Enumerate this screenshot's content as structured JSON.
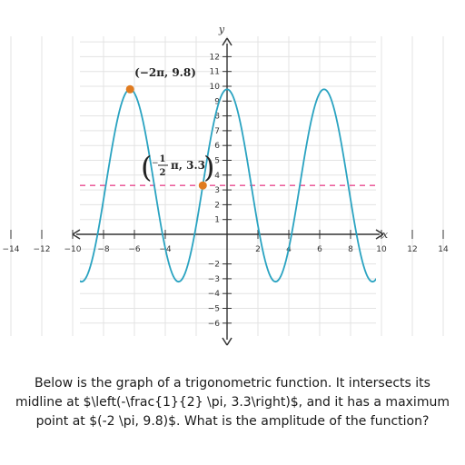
{
  "chart_data": {
    "type": "line",
    "xlabel": "x",
    "ylabel": "y",
    "xlim": [
      -16,
      16
    ],
    "ylim": [
      -7,
      13.2
    ],
    "x_ticks": [
      -14,
      -12,
      -10,
      -8,
      -6,
      -4,
      2,
      4,
      6,
      8,
      10,
      12,
      14
    ],
    "y_ticks": [
      -6,
      -5,
      -4,
      -3,
      -2,
      1,
      2,
      3,
      4,
      5,
      6,
      7,
      8,
      9,
      10,
      11,
      12
    ],
    "grid": true,
    "function": {
      "kind": "sine",
      "midline": 3.3,
      "amplitude": 6.5,
      "period": 6.2832,
      "midline_crossing_x": -1.5708,
      "curve_color": "#2aa3c1"
    },
    "midline_color": "#e84a8f",
    "points": [
      {
        "x": -6.2832,
        "y": 9.8,
        "label": "(−2π, 9.8)",
        "color": "#e07b1f"
      },
      {
        "x": -1.5708,
        "y": 3.3,
        "label_parts": [
          "1",
          "2",
          "π, 3.3"
        ],
        "color": "#e07b1f"
      }
    ]
  },
  "question": {
    "text": "Below is the graph of a trigonometric function. It intersects its midline at $\\left(-\\frac{1}{2} \\pi, 3.3\\right)$, and it has a maximum point at $(-2 \\pi, 9.8)$. What is the amplitude of the function?"
  }
}
